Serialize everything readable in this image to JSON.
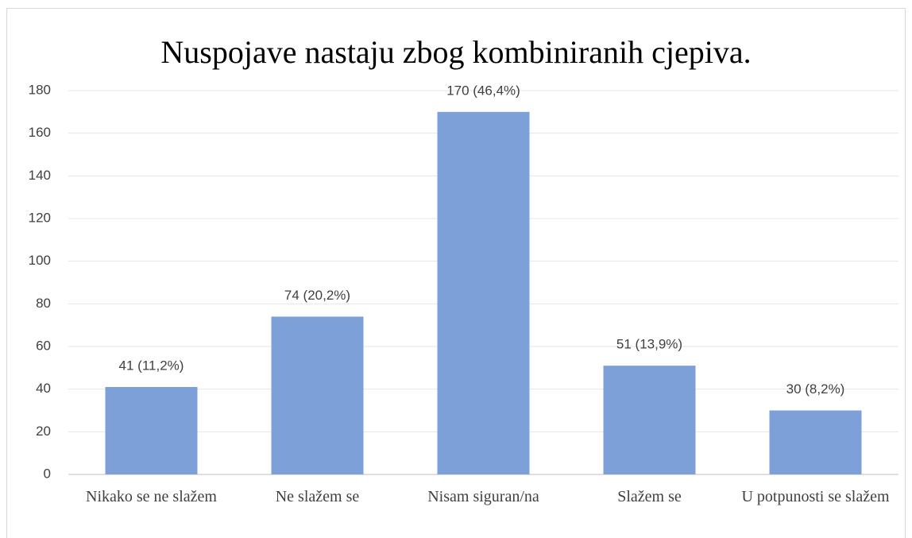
{
  "chart_data": {
    "type": "bar",
    "title": "Nuspojave nastaju zbog kombiniranih cjepiva.",
    "categories": [
      "Nikako se ne slažem",
      "Ne slažem se",
      "Nisam siguran/na",
      "Slažem se",
      "U potpunosti se slažem"
    ],
    "values": [
      41,
      74,
      170,
      51,
      30
    ],
    "value_labels": [
      "41 (11,2%)",
      "74 (20,2%)",
      "170 (46,4%)",
      "51 (13,9%)",
      "30 (8,2%)"
    ],
    "color": "#7da0d8",
    "ylim": [
      0,
      180
    ],
    "yticks": [
      0,
      20,
      40,
      60,
      80,
      100,
      120,
      140,
      160,
      180
    ],
    "grid": true
  }
}
